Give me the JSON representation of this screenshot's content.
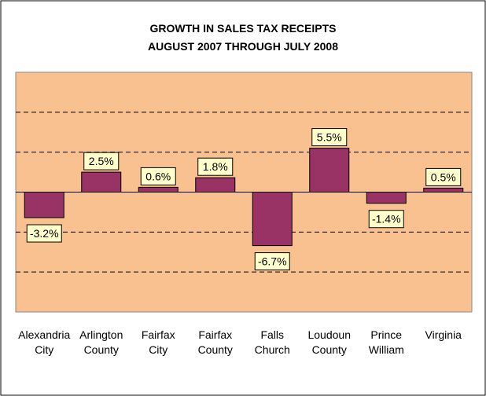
{
  "chart_data": {
    "type": "bar",
    "title": "GROWTH IN SALES TAX RECEIPTS",
    "subtitle": "AUGUST 2007 THROUGH JULY 2008",
    "categories": [
      "Alexandria City",
      "Arlington County",
      "Fairfax City",
      "Fairfax County",
      "Falls Church",
      "Loudoun County",
      "Prince William",
      "Virginia"
    ],
    "values": [
      -3.2,
      2.5,
      0.6,
      1.8,
      -6.7,
      5.5,
      -1.4,
      0.5
    ],
    "value_labels": [
      "-3.2%",
      "2.5%",
      "0.6%",
      "1.8%",
      "-6.7%",
      "5.5%",
      "-1.4%",
      "0.5%"
    ],
    "color": "#993366",
    "ylim": [
      -15,
      15
    ],
    "yticks": [
      -10,
      -5,
      0,
      5,
      10
    ],
    "grid": true
  }
}
